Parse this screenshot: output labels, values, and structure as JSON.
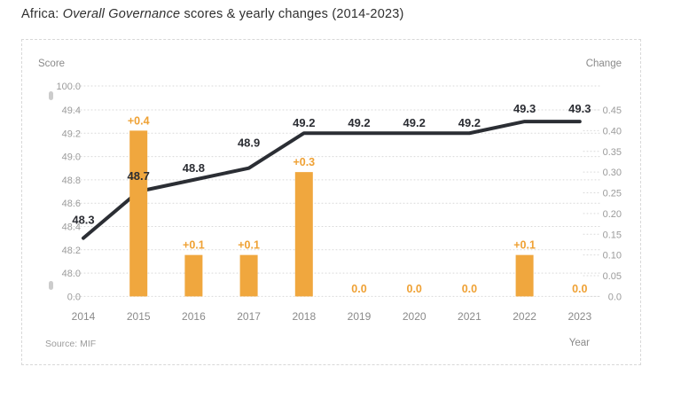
{
  "title": {
    "prefix": "Africa: ",
    "italic_segment": "Overall Governance",
    "suffix": " scores & yearly changes (2014-2023)"
  },
  "footer": {
    "source": "Source: MIF"
  },
  "colors": {
    "bar": "#f0a73e",
    "bar_label": "#efa134",
    "line": "#2b2e34",
    "line_label": "#2b2d33",
    "axis_text": "#9b9b9b",
    "year_text": "#8a8a8a",
    "grid": "#d9d9d9",
    "break_mark": "#cccccc",
    "title_text": "#2f2f2f"
  },
  "chart_data": {
    "type": "bar",
    "subtype": "line+bar combo, dual y-axis",
    "title": "Africa: Overall Governance scores & yearly changes (2014-2023)",
    "categories": [
      "2014",
      "2015",
      "2016",
      "2017",
      "2018",
      "2019",
      "2020",
      "2021",
      "2022",
      "2023"
    ],
    "xlabel": "Year",
    "grid": "dotted horizontal gridlines, dashed panel border",
    "left_axis": {
      "label": "Score",
      "tick_labels": [
        "100.0",
        "49.4",
        "49.2",
        "49.0",
        "48.8",
        "48.6",
        "48.4",
        "48.2",
        "48.0",
        "0.0"
      ],
      "broken_axis": "breaks between 49.4–100.0 and 0.0–48.0"
    },
    "right_axis": {
      "label": "Change",
      "tick_labels": [
        "0.45",
        "0.40",
        "0.35",
        "0.30",
        "0.25",
        "0.20",
        "0.15",
        "0.10",
        "0.05",
        "0.0"
      ],
      "range": [
        0,
        0.45
      ]
    },
    "series": [
      {
        "name": "Overall Governance score",
        "type": "line",
        "axis": "left",
        "values": [
          48.3,
          48.7,
          48.8,
          48.9,
          49.2,
          49.2,
          49.2,
          49.2,
          49.3,
          49.3
        ],
        "point_labels": [
          "48.3",
          "48.7",
          "48.8",
          "48.9",
          "49.2",
          "49.2",
          "49.2",
          "49.2",
          "49.3",
          "49.3"
        ],
        "label_offsets": [
          -16,
          -13,
          -9,
          -24,
          -7,
          -7,
          -7,
          -7,
          -10,
          -10
        ]
      },
      {
        "name": "Yearly change",
        "type": "bar",
        "axis": "right",
        "values": [
          null,
          0.4,
          0.1,
          0.1,
          0.3,
          0.0,
          0.0,
          0.0,
          0.1,
          0.0
        ],
        "point_labels": [
          "",
          "+0.4",
          "+0.1",
          "+0.1",
          "+0.3",
          "0.0",
          "0.0",
          "0.0",
          "+0.1",
          "0.0"
        ]
      }
    ]
  }
}
